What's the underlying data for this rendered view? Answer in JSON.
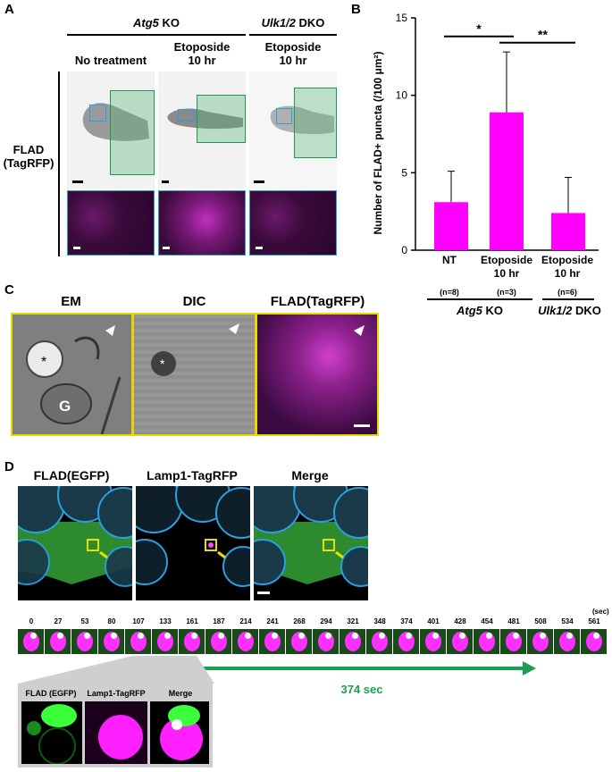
{
  "panelA": {
    "label": "A",
    "atg5": "Atg5",
    "atg5_suffix": " KO",
    "ulk": "Ulk1/2",
    "ulk_suffix": " DKO",
    "col1": "No treatment",
    "col2_l1": "Etoposide",
    "col2_l2": "10 hr",
    "col3_l1": "Etoposide",
    "col3_l2": "10 hr",
    "row_l1": "FLAD",
    "row_l2": "(TagRFP)"
  },
  "panelB": {
    "label": "B",
    "ylabel": "Number of FLAD+ puncta (/100 μm²)",
    "sig1": "*",
    "sig2": "**",
    "cat1": "NT",
    "cat2_l1": "Etoposide",
    "cat2_l2": "10 hr",
    "cat3_l1": "Etoposide",
    "cat3_l2": "10 hr",
    "n1": "(n=8)",
    "n2": "(n=3)",
    "n3": "(n=6)",
    "atg5": "Atg5",
    "atg5_suffix": " KO",
    "ulk": "Ulk1/2",
    "ulk_suffix": " DKO"
  },
  "chart_data": {
    "type": "bar",
    "categories": [
      "NT",
      "Etoposide 10 hr",
      "Etoposide 10 hr"
    ],
    "values": [
      3.1,
      8.9,
      2.4
    ],
    "errors": [
      2.0,
      3.9,
      2.3
    ],
    "ylabel": "Number of FLAD+ puncta (/100 μm²)",
    "ylim": [
      0,
      15
    ],
    "yticks": [
      0,
      5,
      10,
      15
    ],
    "color": "#ff00ff"
  },
  "panelC": {
    "label": "C",
    "em": "EM",
    "dic": "DIC",
    "flad": "FLAD(TagRFP)",
    "star": "*",
    "g": "G"
  },
  "panelD": {
    "label": "D",
    "ch1": "FLAD(EGFP)",
    "ch2": "Lamp1-TagRFP",
    "ch3": "Merge",
    "sec": "(sec)",
    "times": [
      "0",
      "27",
      "53",
      "80",
      "107",
      "133",
      "161",
      "187",
      "214",
      "241",
      "268",
      "294",
      "321",
      "348",
      "374",
      "401",
      "428",
      "454",
      "481",
      "508",
      "534",
      "561"
    ],
    "duration": "374 sec",
    "inset1": "FLAD (EGFP)",
    "inset2": "Lamp1-TagRFP",
    "inset3": "Merge"
  }
}
